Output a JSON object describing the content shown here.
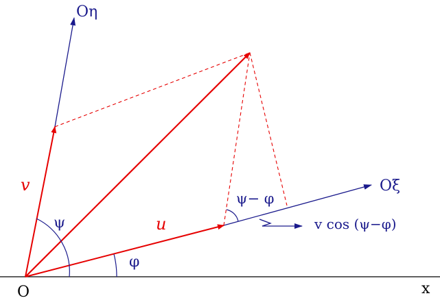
{
  "labels": {
    "origin": "O",
    "x_axis": "x",
    "eta_axis": "Oη",
    "xi_axis": "Oξ",
    "v_vector": "v",
    "u_vector": "u",
    "psi_angle": "ψ",
    "phi_angle": "φ",
    "psi_minus_phi": "ψ− φ",
    "projection": "v cos (ψ−φ)"
  },
  "colors": {
    "axis": "#000000",
    "frame_axis": "#1a1a8c",
    "vector": "#e60000",
    "dashed": "#e60000",
    "label_blue": "#1a1a8c",
    "label_red": "#e60000"
  }
}
